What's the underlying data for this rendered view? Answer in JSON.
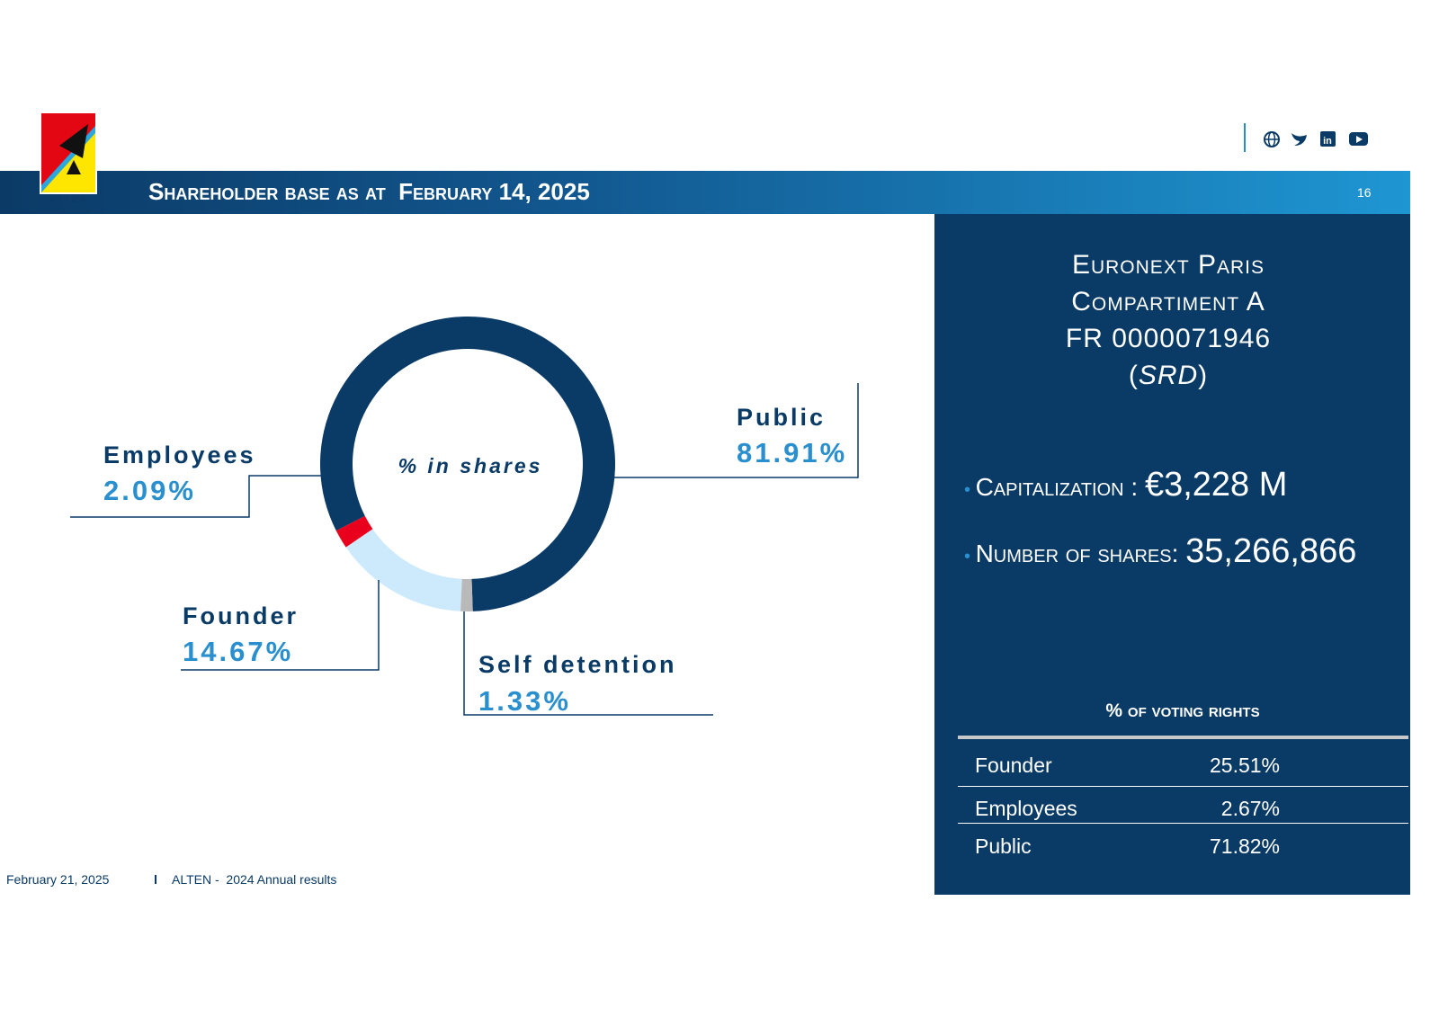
{
  "header": {
    "title": "Shareholder base as at  February 14, 2025",
    "page": "16",
    "logo": "ALTEN"
  },
  "chart_data": {
    "type": "pie",
    "donut": true,
    "center_label": "% in shares",
    "categories": [
      "Self detention",
      "Founder",
      "Employees",
      "Public"
    ],
    "values": [
      1.33,
      14.67,
      2.09,
      81.91
    ],
    "value_labels": [
      "1.33%",
      "14.67%",
      "2.09%",
      "81.91%"
    ],
    "colors": [
      "#b9b9b9",
      "#cdeafd",
      "#e8001c",
      "#0a3a66"
    ]
  },
  "panel": {
    "market": [
      "Euronext Paris",
      "Compartiment A",
      "FR 0000071946"
    ],
    "srd": "SRD",
    "items": [
      {
        "label": "Capitalization : ",
        "value": "€3,228 M"
      },
      {
        "label": "Number of shares: ",
        "value": "35,266,866"
      }
    ],
    "voting": {
      "title": "% of voting rights",
      "rows": [
        [
          "Founder",
          "25.51%"
        ],
        [
          "Employees",
          "2.67%"
        ],
        [
          "Public",
          "71.82%"
        ]
      ]
    }
  },
  "footer": {
    "date": "February 21, 2025",
    "text": "ALTEN -  2024 Annual results"
  }
}
